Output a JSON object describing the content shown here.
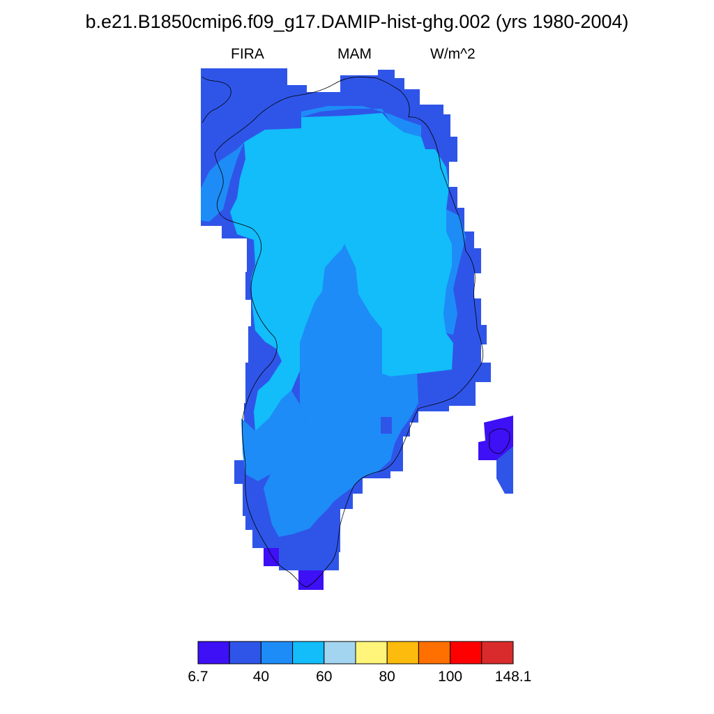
{
  "title": "b.e21.B1850cmip6.f09_g17.DAMIP-hist-ghg.002 (yrs 1980-2004)",
  "subtitle": {
    "left": "FIRA",
    "center": "MAM",
    "right": "W/m^2"
  },
  "legend": {
    "colors": [
      "#3d10f5",
      "#2f55e8",
      "#1e8cf7",
      "#12bdfa",
      "#a3d5f0",
      "#fff57a",
      "#fcbb0d",
      "#ff7000",
      "#ff0000",
      "#d92b2b"
    ],
    "labels": [
      {
        "text": "6.7",
        "at_boundary": 0
      },
      {
        "text": "40",
        "at_boundary": 2
      },
      {
        "text": "60",
        "at_boundary": 4
      },
      {
        "text": "80",
        "at_boundary": 6
      },
      {
        "text": "100",
        "at_boundary": 8
      },
      {
        "text": "148.1",
        "at_boundary": 10
      }
    ]
  },
  "map": {
    "region": "Greenland",
    "fill_colors": {
      "ice_interior": "#12bdfa",
      "south_interior": "#1e8cf7",
      "coastal_margin": "#2f55e8",
      "lowest": "#3d10f5",
      "coastline": "#000000"
    }
  }
}
